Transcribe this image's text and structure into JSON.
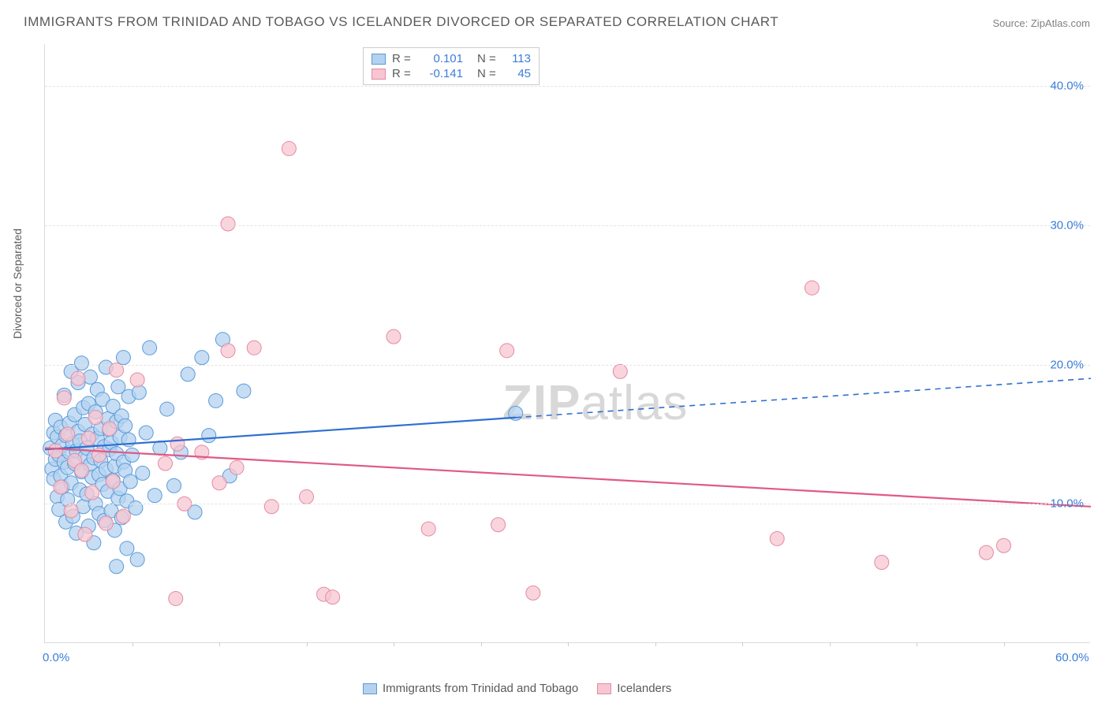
{
  "title": "IMMIGRANTS FROM TRINIDAD AND TOBAGO VS ICELANDER DIVORCED OR SEPARATED CORRELATION CHART",
  "source": "Source: ZipAtlas.com",
  "yaxis_title": "Divorced or Separated",
  "watermark_a": "ZIP",
  "watermark_b": "atlas",
  "chart": {
    "type": "scatter",
    "xlim": [
      0,
      60
    ],
    "ylim": [
      0,
      43
    ],
    "x_ticks_minor_step": 5,
    "x_ticks": [
      {
        "v": 0,
        "label": "0.0%",
        "color": "#3b7dd8"
      },
      {
        "v": 60,
        "label": "60.0%",
        "color": "#3b7dd8"
      }
    ],
    "y_ticks": [
      {
        "v": 10,
        "label": "10.0%",
        "color": "#3b7dd8"
      },
      {
        "v": 20,
        "label": "20.0%",
        "color": "#3b7dd8"
      },
      {
        "v": 30,
        "label": "30.0%",
        "color": "#3b7dd8"
      },
      {
        "v": 40,
        "label": "40.0%",
        "color": "#3b7dd8"
      }
    ],
    "series": [
      {
        "id": "trinidad",
        "label": "Immigrants from Trinidad and Tobago",
        "fill": "#b4d1f0",
        "stroke": "#5a9bd8",
        "line_color": "#2f6fd0",
        "r_value": "0.101",
        "n_value": "113",
        "marker_r": 9,
        "marker_opacity": 0.75,
        "trend": {
          "x1": 0,
          "y1": 13.9,
          "x2_solid": 27,
          "x2": 60,
          "y2": 19.0
        },
        "points": [
          [
            0.3,
            14.0
          ],
          [
            0.4,
            12.5
          ],
          [
            0.5,
            15.1
          ],
          [
            0.5,
            11.8
          ],
          [
            0.6,
            13.2
          ],
          [
            0.6,
            16.0
          ],
          [
            0.7,
            10.5
          ],
          [
            0.7,
            14.8
          ],
          [
            0.8,
            13.5
          ],
          [
            0.8,
            9.6
          ],
          [
            0.9,
            12.0
          ],
          [
            0.9,
            15.5
          ],
          [
            1.0,
            14.2
          ],
          [
            1.0,
            11.2
          ],
          [
            1.1,
            17.8
          ],
          [
            1.1,
            13.0
          ],
          [
            1.2,
            8.7
          ],
          [
            1.2,
            14.9
          ],
          [
            1.3,
            12.6
          ],
          [
            1.3,
            10.3
          ],
          [
            1.4,
            15.8
          ],
          [
            1.4,
            13.7
          ],
          [
            1.5,
            19.5
          ],
          [
            1.5,
            11.5
          ],
          [
            1.6,
            14.3
          ],
          [
            1.6,
            9.1
          ],
          [
            1.7,
            16.4
          ],
          [
            1.7,
            12.9
          ],
          [
            1.8,
            13.8
          ],
          [
            1.8,
            7.9
          ],
          [
            1.9,
            15.2
          ],
          [
            1.9,
            18.7
          ],
          [
            2.0,
            11.0
          ],
          [
            2.0,
            14.5
          ],
          [
            2.1,
            20.1
          ],
          [
            2.1,
            12.3
          ],
          [
            2.2,
            9.8
          ],
          [
            2.2,
            16.9
          ],
          [
            2.3,
            13.4
          ],
          [
            2.3,
            15.7
          ],
          [
            2.4,
            10.7
          ],
          [
            2.4,
            14.0
          ],
          [
            2.5,
            17.2
          ],
          [
            2.5,
            8.4
          ],
          [
            2.6,
            12.8
          ],
          [
            2.6,
            19.1
          ],
          [
            2.7,
            11.9
          ],
          [
            2.7,
            15.0
          ],
          [
            2.8,
            13.3
          ],
          [
            2.8,
            7.2
          ],
          [
            2.9,
            16.6
          ],
          [
            2.9,
            10.0
          ],
          [
            3.0,
            14.7
          ],
          [
            3.0,
            18.2
          ],
          [
            3.1,
            12.1
          ],
          [
            3.1,
            9.3
          ],
          [
            3.2,
            15.4
          ],
          [
            3.2,
            13.1
          ],
          [
            3.3,
            11.4
          ],
          [
            3.3,
            17.5
          ],
          [
            3.4,
            14.1
          ],
          [
            3.4,
            8.8
          ],
          [
            3.5,
            19.8
          ],
          [
            3.5,
            12.5
          ],
          [
            3.6,
            16.1
          ],
          [
            3.6,
            10.9
          ],
          [
            3.7,
            13.9
          ],
          [
            3.7,
            15.3
          ],
          [
            3.8,
            9.5
          ],
          [
            3.8,
            14.4
          ],
          [
            3.9,
            11.7
          ],
          [
            3.9,
            17.0
          ],
          [
            4.0,
            12.7
          ],
          [
            4.0,
            8.1
          ],
          [
            4.1,
            15.9
          ],
          [
            4.1,
            13.6
          ],
          [
            4.2,
            10.4
          ],
          [
            4.2,
            18.4
          ],
          [
            4.3,
            14.8
          ],
          [
            4.3,
            11.1
          ],
          [
            4.4,
            16.3
          ],
          [
            4.4,
            9.0
          ],
          [
            4.5,
            13.0
          ],
          [
            4.5,
            20.5
          ],
          [
            4.6,
            12.4
          ],
          [
            4.6,
            15.6
          ],
          [
            4.7,
            10.2
          ],
          [
            4.7,
            6.8
          ],
          [
            4.8,
            14.6
          ],
          [
            4.8,
            17.7
          ],
          [
            4.9,
            11.6
          ],
          [
            5.0,
            13.5
          ],
          [
            5.2,
            9.7
          ],
          [
            5.4,
            18.0
          ],
          [
            5.6,
            12.2
          ],
          [
            5.8,
            15.1
          ],
          [
            6.0,
            21.2
          ],
          [
            6.3,
            10.6
          ],
          [
            6.6,
            14.0
          ],
          [
            5.3,
            6.0
          ],
          [
            7.0,
            16.8
          ],
          [
            7.4,
            11.3
          ],
          [
            7.8,
            13.7
          ],
          [
            8.2,
            19.3
          ],
          [
            8.6,
            9.4
          ],
          [
            4.1,
            5.5
          ],
          [
            9.4,
            14.9
          ],
          [
            9.8,
            17.4
          ],
          [
            10.2,
            21.8
          ],
          [
            10.6,
            12.0
          ],
          [
            9.0,
            20.5
          ],
          [
            11.4,
            18.1
          ],
          [
            27.0,
            16.5
          ]
        ]
      },
      {
        "id": "iceland",
        "label": "Icelanders",
        "fill": "#f7c6d2",
        "stroke": "#e38ba3",
        "line_color": "#e05a85",
        "r_value": "-0.141",
        "n_value": "45",
        "marker_r": 9,
        "marker_opacity": 0.75,
        "trend": {
          "x1": 0,
          "y1": 14.0,
          "x2_solid": 60,
          "x2": 60,
          "y2": 9.8
        },
        "points": [
          [
            0.6,
            13.8
          ],
          [
            0.9,
            11.2
          ],
          [
            1.1,
            17.6
          ],
          [
            1.3,
            15.0
          ],
          [
            1.5,
            9.5
          ],
          [
            1.7,
            13.1
          ],
          [
            1.9,
            19.0
          ],
          [
            2.1,
            12.4
          ],
          [
            2.3,
            7.8
          ],
          [
            2.5,
            14.7
          ],
          [
            2.7,
            10.8
          ],
          [
            2.9,
            16.2
          ],
          [
            3.1,
            13.5
          ],
          [
            5.3,
            18.9
          ],
          [
            3.5,
            8.6
          ],
          [
            3.7,
            15.4
          ],
          [
            3.9,
            11.6
          ],
          [
            4.1,
            19.6
          ],
          [
            6.9,
            12.9
          ],
          [
            4.5,
            9.1
          ],
          [
            7.6,
            14.3
          ],
          [
            8.0,
            10.0
          ],
          [
            9.0,
            13.7
          ],
          [
            7.5,
            3.2
          ],
          [
            10.0,
            11.5
          ],
          [
            10.5,
            21.0
          ],
          [
            10.5,
            30.1
          ],
          [
            11.0,
            12.6
          ],
          [
            12.0,
            21.2
          ],
          [
            13.0,
            9.8
          ],
          [
            14.0,
            35.5
          ],
          [
            15.0,
            10.5
          ],
          [
            16.0,
            3.5
          ],
          [
            16.5,
            3.3
          ],
          [
            20.0,
            22.0
          ],
          [
            22.0,
            8.2
          ],
          [
            26.0,
            8.5
          ],
          [
            26.5,
            21.0
          ],
          [
            28.0,
            3.6
          ],
          [
            33.0,
            19.5
          ],
          [
            42.0,
            7.5
          ],
          [
            44.0,
            25.5
          ],
          [
            48.0,
            5.8
          ],
          [
            55.0,
            7.0
          ],
          [
            54.0,
            6.5
          ]
        ]
      }
    ]
  },
  "legend_top_labels": {
    "R": "R =",
    "N": "N ="
  },
  "value_color": "#3b7dd8"
}
